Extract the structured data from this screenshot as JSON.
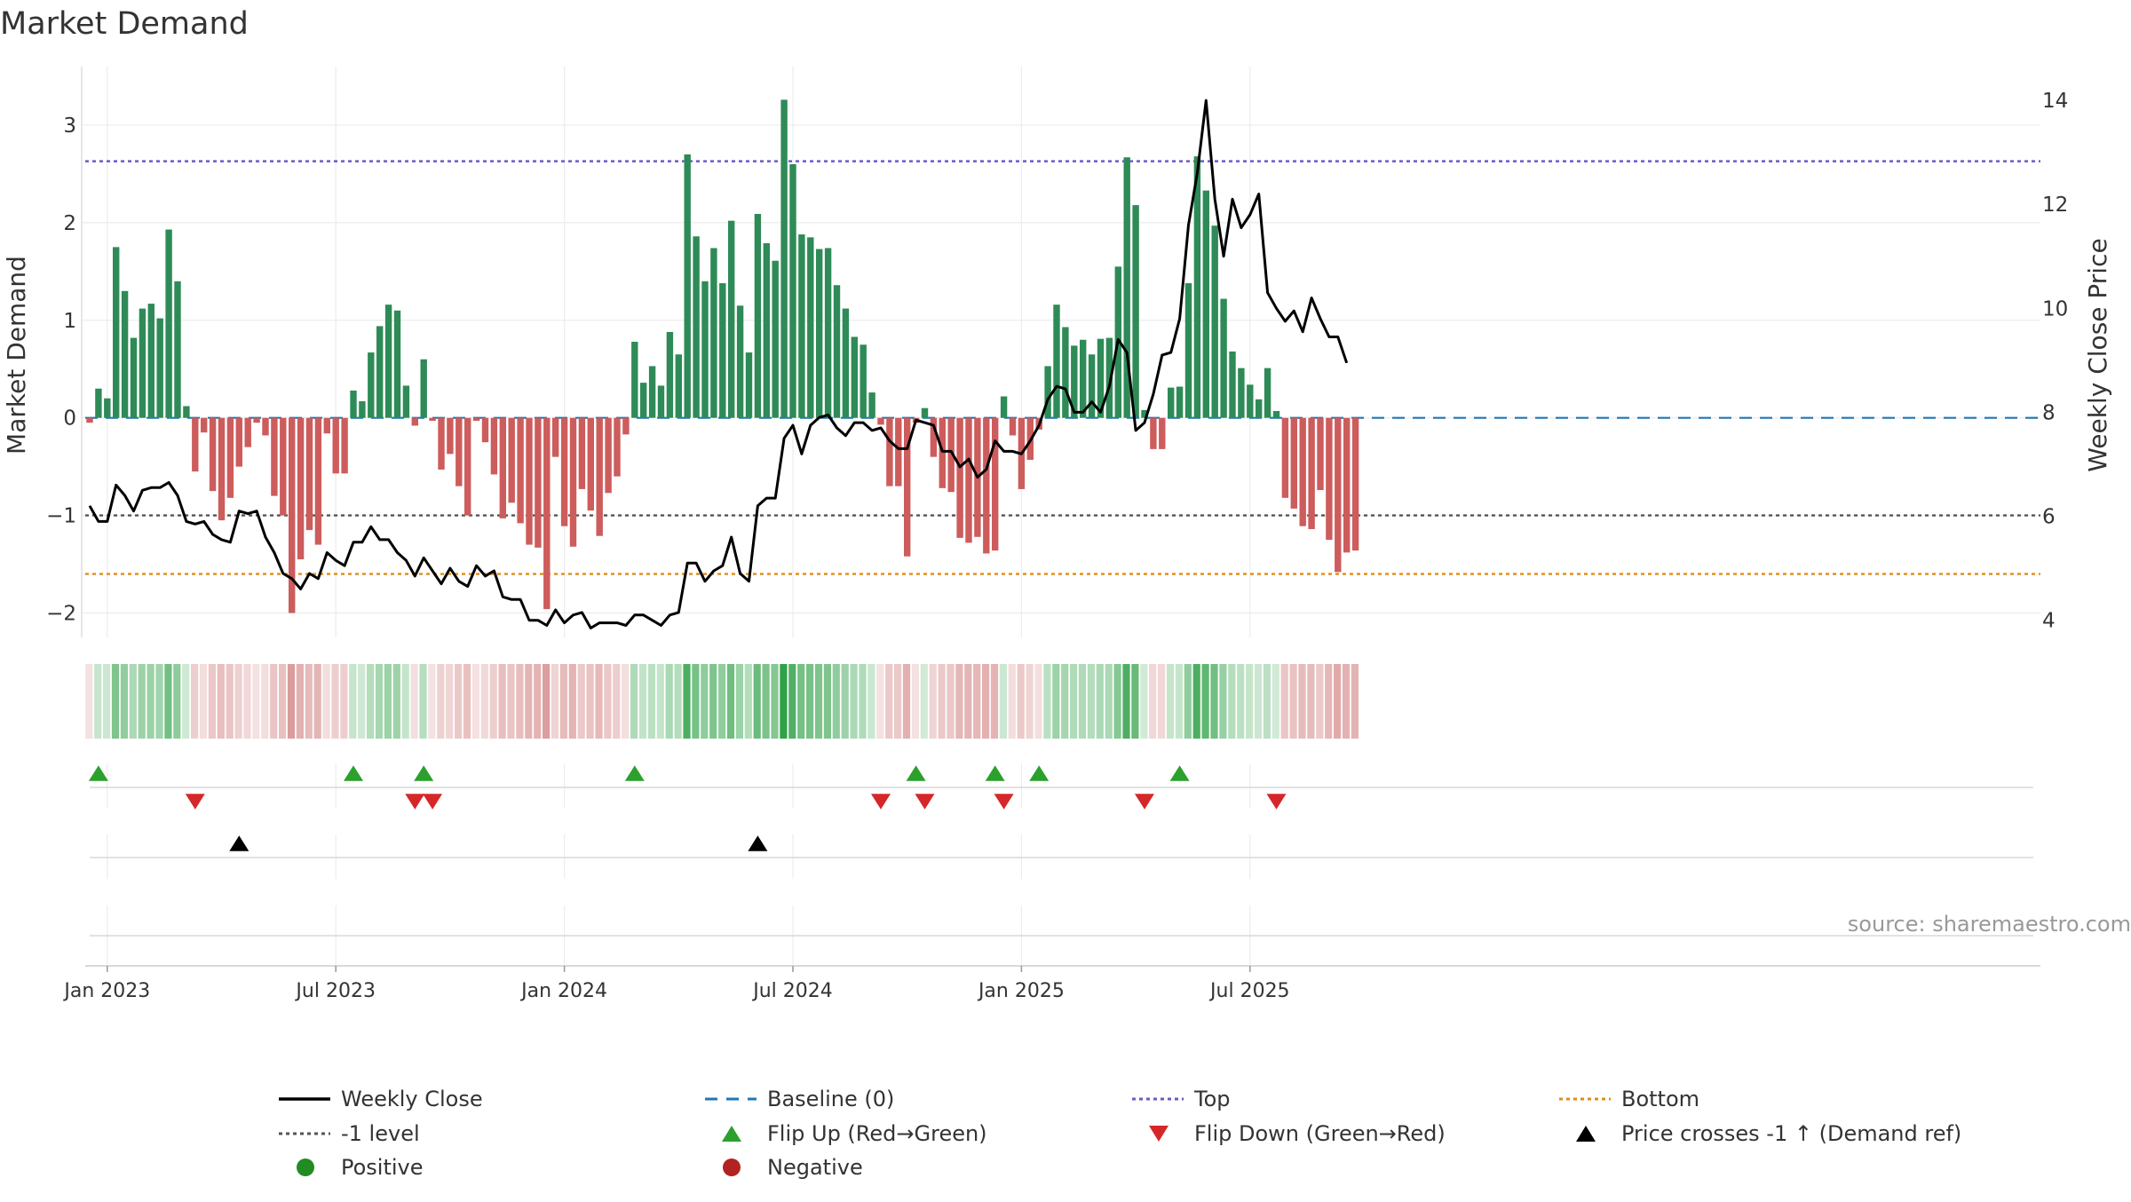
{
  "chart_data": {
    "type": "bar",
    "title": "Market Demand",
    "ylabel_left": "Market Demand",
    "ylabel_right": "Weekly Close Price",
    "source": "source: sharemaestro.com",
    "y_left_range": [
      -2.25,
      3.6
    ],
    "y_right_range": [
      3.67,
      14.65
    ],
    "y_left_ticks": [
      {
        "v": -2,
        "label": "−2"
      },
      {
        "v": -1,
        "label": "−1"
      },
      {
        "v": 0,
        "label": "0"
      },
      {
        "v": 1,
        "label": "1"
      },
      {
        "v": 2,
        "label": "2"
      },
      {
        "v": 3,
        "label": "3"
      }
    ],
    "y_right_ticks": [
      {
        "v": 4,
        "label": "4"
      },
      {
        "v": 6,
        "label": "6"
      },
      {
        "v": 8,
        "label": "8"
      },
      {
        "v": 10,
        "label": "10"
      },
      {
        "v": 12,
        "label": "12"
      },
      {
        "v": 14,
        "label": "14"
      }
    ],
    "x_ticks": [
      {
        "week": 2,
        "label": "Jan 2023"
      },
      {
        "week": 28,
        "label": "Jul 2023"
      },
      {
        "week": 54,
        "label": "Jan 2024"
      },
      {
        "week": 80,
        "label": "Jul 2024"
      },
      {
        "week": 106,
        "label": "Jan 2025"
      },
      {
        "week": 132,
        "label": "Jul 2025"
      }
    ],
    "reference_lines": {
      "top": 2.63,
      "bottom": -1.6,
      "minus_one": -1.0,
      "baseline": 0
    },
    "colors": {
      "positive": "#2e8b57",
      "negative": "#cd5c5c",
      "price": "#000000",
      "top": "#6a5acd",
      "bottom": "#e08c1a",
      "minus_one": "#555555",
      "baseline": "#1f77b4",
      "flip_up": "#2ca02c",
      "flip_down": "#d62728",
      "cross": "#000000"
    },
    "weeks_count": 145,
    "demand": [
      -0.05,
      0.3,
      0.2,
      1.75,
      1.3,
      0.82,
      1.12,
      1.17,
      1.02,
      1.93,
      1.4,
      0.12,
      -0.55,
      -0.15,
      -0.75,
      -1.05,
      -0.82,
      -0.5,
      -0.3,
      -0.05,
      -0.18,
      -0.8,
      -1.0,
      -2.0,
      -1.45,
      -1.15,
      -1.3,
      -0.16,
      -0.57,
      -0.57,
      0.28,
      0.17,
      0.67,
      0.94,
      1.16,
      1.1,
      0.33,
      -0.08,
      0.6,
      -0.03,
      -0.53,
      -0.37,
      -0.7,
      -1.0,
      -0.03,
      -0.25,
      -0.58,
      -1.03,
      -0.87,
      -1.08,
      -1.3,
      -1.33,
      -1.96,
      -0.4,
      -1.11,
      -1.32,
      -0.73,
      -0.95,
      -1.21,
      -0.77,
      -0.6,
      -0.17,
      0.78,
      0.36,
      0.53,
      0.33,
      0.88,
      0.65,
      2.7,
      1.86,
      1.4,
      1.74,
      1.38,
      2.02,
      1.15,
      0.67,
      2.09,
      1.79,
      1.61,
      3.26,
      2.6,
      1.88,
      1.85,
      1.73,
      1.74,
      1.36,
      1.12,
      0.83,
      0.75,
      0.26,
      -0.07,
      -0.7,
      -0.7,
      -1.42,
      -0.05,
      0.1,
      -0.4,
      -0.72,
      -0.76,
      -1.23,
      -1.28,
      -1.22,
      -1.39,
      -1.36,
      0.22,
      -0.18,
      -0.73,
      -0.43,
      -0.12,
      0.53,
      1.16,
      0.93,
      0.74,
      0.8,
      0.65,
      0.81,
      0.82,
      1.55,
      2.67,
      2.18,
      0.08,
      -0.32,
      -0.32,
      0.31,
      0.32,
      1.38,
      2.68,
      2.33,
      1.97,
      1.22,
      0.68,
      0.51,
      0.34,
      0.19,
      0.51,
      0.07,
      -0.82,
      -0.93,
      -1.11,
      -1.14,
      -0.74,
      -1.25,
      -1.58,
      -1.38,
      -1.36
    ],
    "price": [
      6.2,
      5.9,
      5.9,
      6.6,
      6.4,
      6.1,
      6.5,
      6.55,
      6.55,
      6.65,
      6.4,
      5.9,
      5.85,
      5.9,
      5.65,
      5.55,
      5.5,
      6.1,
      6.05,
      6.1,
      5.6,
      5.3,
      4.9,
      4.8,
      4.6,
      4.9,
      4.8,
      5.3,
      5.15,
      5.05,
      5.5,
      5.5,
      5.8,
      5.55,
      5.55,
      5.3,
      5.15,
      4.85,
      5.2,
      4.95,
      4.7,
      5.0,
      4.75,
      4.65,
      5.05,
      4.85,
      4.95,
      4.45,
      4.4,
      4.4,
      4.0,
      4.0,
      3.9,
      4.2,
      3.95,
      4.1,
      4.15,
      3.85,
      3.95,
      3.95,
      3.95,
      3.9,
      4.1,
      4.1,
      4.0,
      3.9,
      4.1,
      4.15,
      5.1,
      5.1,
      4.75,
      4.95,
      5.05,
      5.6,
      4.9,
      4.75,
      6.2,
      6.35,
      6.35,
      7.5,
      7.75,
      7.2,
      7.75,
      7.9,
      7.95,
      7.7,
      7.55,
      7.8,
      7.8,
      7.65,
      7.7,
      7.45,
      7.3,
      7.3,
      7.85,
      7.8,
      7.75,
      7.25,
      7.25,
      6.95,
      7.1,
      6.75,
      6.9,
      7.45,
      7.25,
      7.25,
      7.2,
      7.45,
      7.75,
      8.25,
      8.5,
      8.45,
      8.0,
      8.0,
      8.2,
      8.0,
      8.5,
      9.4,
      9.15,
      7.65,
      7.8,
      8.35,
      9.1,
      9.15,
      9.8,
      11.6,
      12.6,
      14.0,
      12.1,
      11.0,
      12.1,
      11.55,
      11.8,
      12.2,
      10.3,
      10.0,
      9.75,
      9.95,
      9.55,
      10.2,
      9.8,
      9.45,
      9.45,
      8.95
    ],
    "flip_up_weeks": [
      1,
      30,
      38,
      62,
      94,
      103,
      108,
      124
    ],
    "flip_down_weeks": [
      12,
      37,
      39,
      90,
      95,
      104,
      120,
      135
    ],
    "cross_up_weeks": [
      17,
      76
    ],
    "legend": [
      {
        "label": "Weekly Close",
        "symbol": "solid-line",
        "color": "#000000"
      },
      {
        "label": "Baseline (0)",
        "symbol": "dash-line",
        "color": "#1f77b4"
      },
      {
        "label": "Top",
        "symbol": "dot-line",
        "color": "#6a5acd"
      },
      {
        "label": "Bottom",
        "symbol": "dot-line",
        "color": "#e08c1a"
      },
      {
        "label": "-1 level",
        "symbol": "dot-line",
        "color": "#555555"
      },
      {
        "label": "Flip Up (Red→Green)",
        "symbol": "triangle-up",
        "color": "#2ca02c"
      },
      {
        "label": "Flip Down (Green→Red)",
        "symbol": "triangle-down",
        "color": "#d62728"
      },
      {
        "label": "Price crosses -1 ↑ (Demand ref)",
        "symbol": "triangle-up",
        "color": "#000000"
      },
      {
        "label": "Positive",
        "symbol": "circle",
        "color": "#228b22"
      },
      {
        "label": "Negative",
        "symbol": "circle",
        "color": "#b22222"
      }
    ]
  }
}
